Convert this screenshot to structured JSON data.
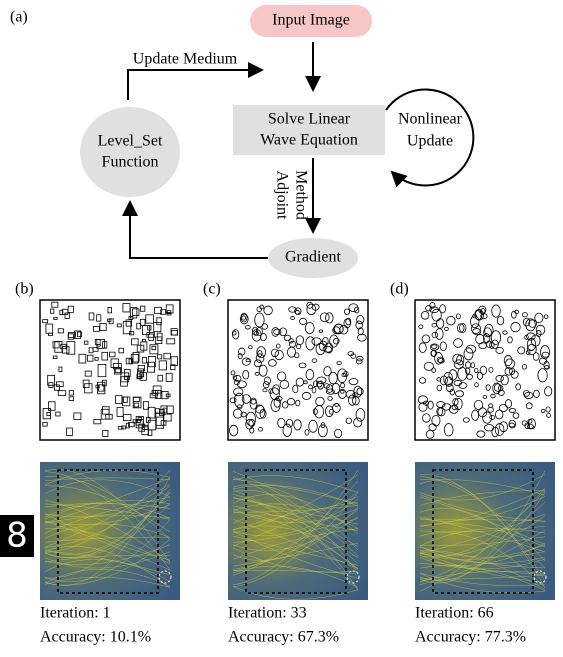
{
  "figure": {
    "diagram": {
      "label": "(a)",
      "input": "Input Image",
      "update_medium": "Update Medium",
      "solve": [
        "Solve Linear",
        "Wave Equation"
      ],
      "nonlinear": [
        "Nonlinear",
        "Update"
      ],
      "level_set": [
        "Level_Set",
        "Function"
      ],
      "adjoint": [
        "Adjoint",
        "Method"
      ],
      "gradient": "Gradient"
    },
    "digit": "8",
    "panels": [
      {
        "label": "(b)",
        "iteration": "Iteration: 1",
        "accuracy": "Accuracy: 10.1%"
      },
      {
        "label": "(c)",
        "iteration": "Iteration: 33",
        "accuracy": "Accuracy: 67.3%"
      },
      {
        "label": "(d)",
        "iteration": "Iteration: 66",
        "accuracy": "Accuracy: 77.3%"
      }
    ]
  }
}
